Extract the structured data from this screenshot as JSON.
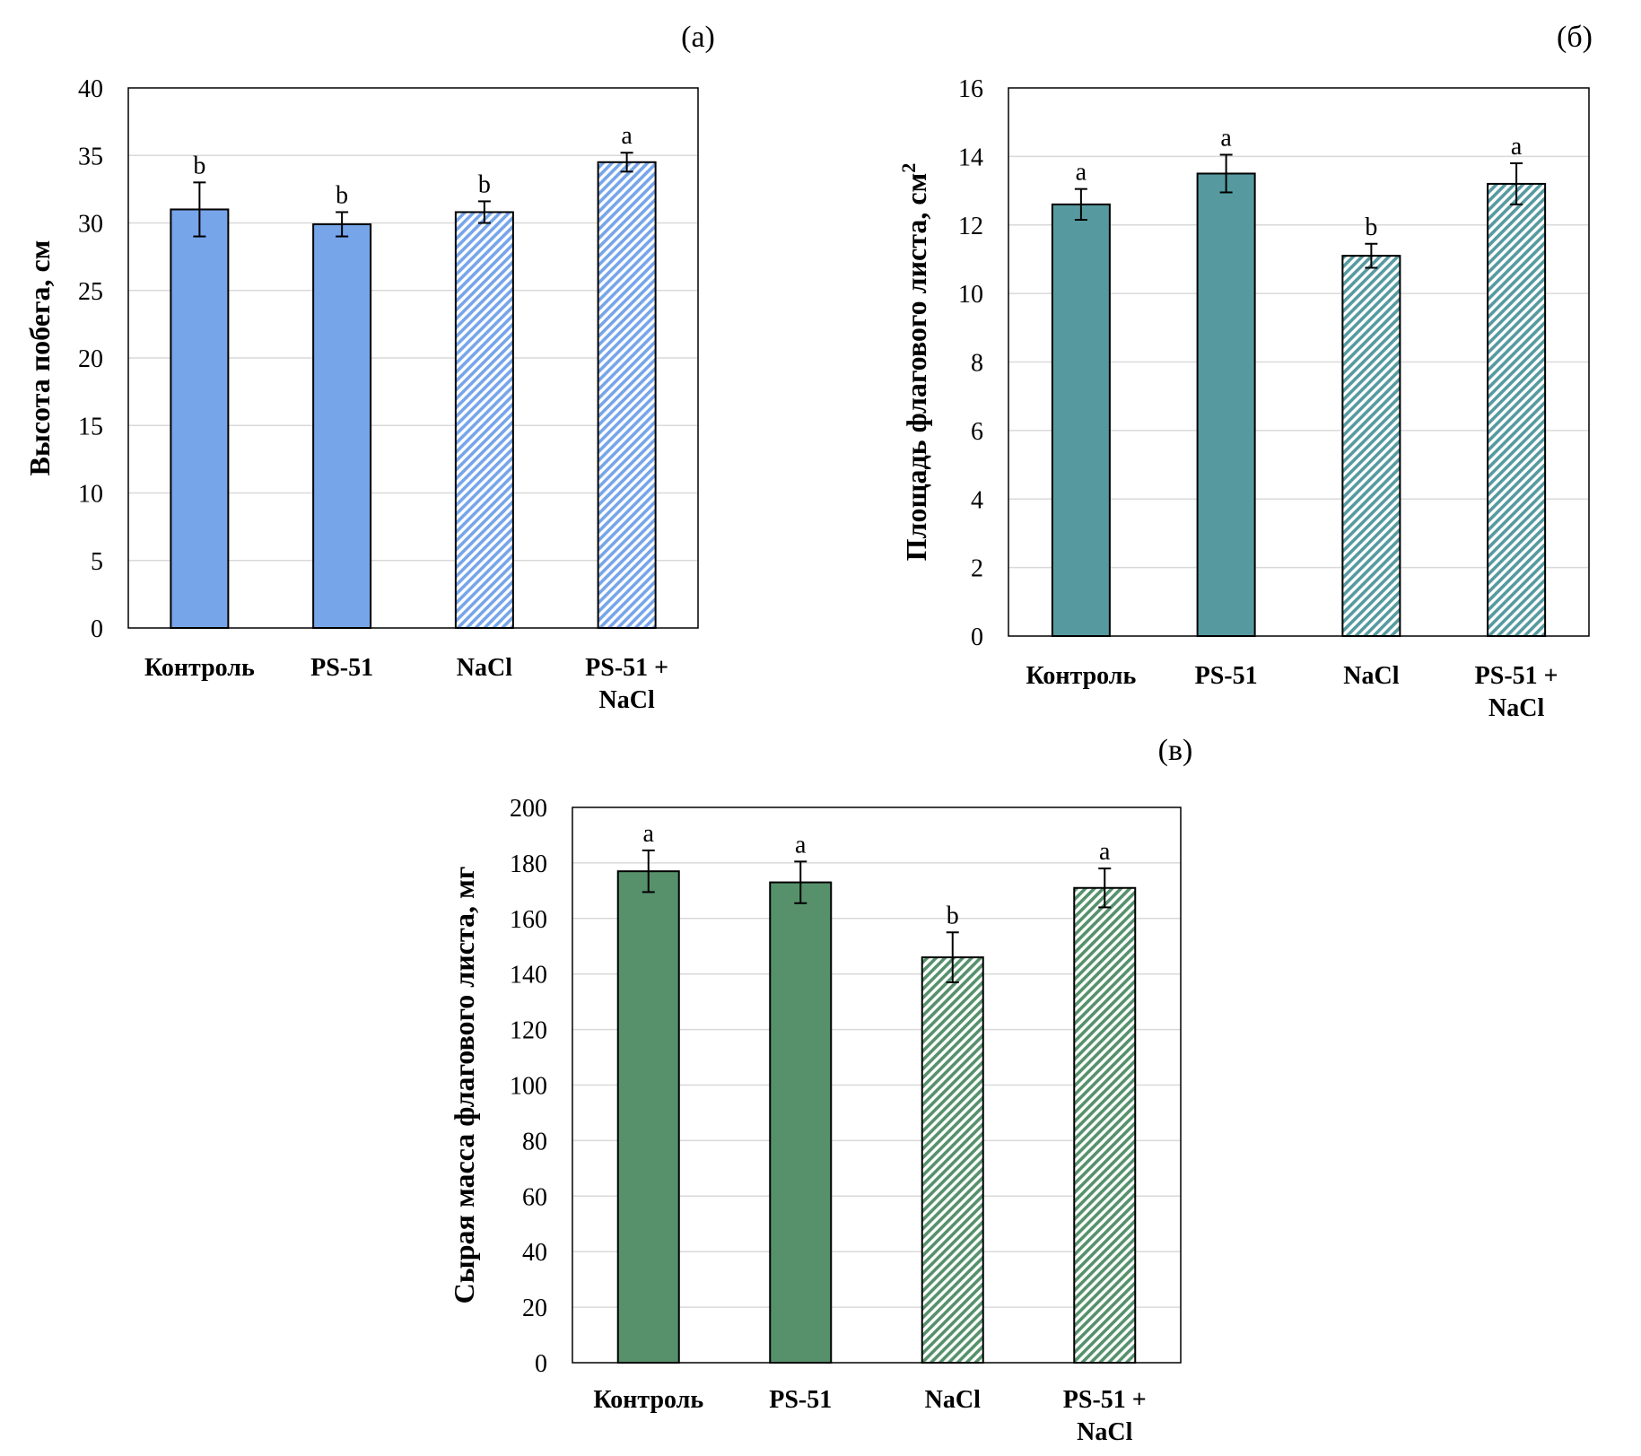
{
  "chart_data": [
    {
      "type": "bar",
      "panel_label": "(а)",
      "categories": [
        [
          "Контроль"
        ],
        [
          "PS-51"
        ],
        [
          "NaCl"
        ],
        [
          "PS-51 +",
          "NaCl"
        ]
      ],
      "values": [
        31.0,
        29.9,
        30.8,
        34.5
      ],
      "errors": [
        2.0,
        0.9,
        0.8,
        0.7
      ],
      "letters": [
        "b",
        "b",
        "b",
        "a"
      ],
      "hatched": [
        false,
        false,
        true,
        true
      ],
      "ylabel": "Высота побега, см",
      "ylabel_sup": "",
      "ylim": [
        0,
        40
      ],
      "yticks": [
        0,
        5,
        10,
        15,
        20,
        25,
        30,
        35,
        40
      ],
      "grid": true,
      "color": "#76a5ea"
    },
    {
      "type": "bar",
      "panel_label": "(б)",
      "categories": [
        [
          "Контроль"
        ],
        [
          "PS-51"
        ],
        [
          "NaCl"
        ],
        [
          "PS-51 +",
          "NaCl"
        ]
      ],
      "values": [
        12.6,
        13.5,
        11.1,
        13.2
      ],
      "errors": [
        0.45,
        0.55,
        0.35,
        0.6
      ],
      "letters": [
        "a",
        "a",
        "b",
        "a"
      ],
      "hatched": [
        false,
        false,
        true,
        true
      ],
      "ylabel": "Площадь флагового листа, см",
      "ylabel_sup": "2",
      "ylim": [
        0,
        16
      ],
      "yticks": [
        0,
        2,
        4,
        6,
        8,
        10,
        12,
        14,
        16
      ],
      "grid": true,
      "color": "#569aa0"
    },
    {
      "type": "bar",
      "panel_label": "(в)",
      "categories": [
        [
          "Контроль"
        ],
        [
          "PS-51"
        ],
        [
          "NaCl"
        ],
        [
          "PS-51 +",
          "NaCl"
        ]
      ],
      "values": [
        177,
        173,
        146,
        171
      ],
      "errors": [
        7.5,
        7.5,
        9.0,
        7.0
      ],
      "letters": [
        "a",
        "a",
        "b",
        "a"
      ],
      "hatched": [
        false,
        false,
        true,
        true
      ],
      "ylabel": "Сырая масса флагового листа, мг",
      "ylabel_sup": "",
      "ylim": [
        0,
        200
      ],
      "yticks": [
        0,
        20,
        40,
        60,
        80,
        100,
        120,
        140,
        160,
        180,
        200
      ],
      "grid": true,
      "color": "#56916c"
    }
  ]
}
